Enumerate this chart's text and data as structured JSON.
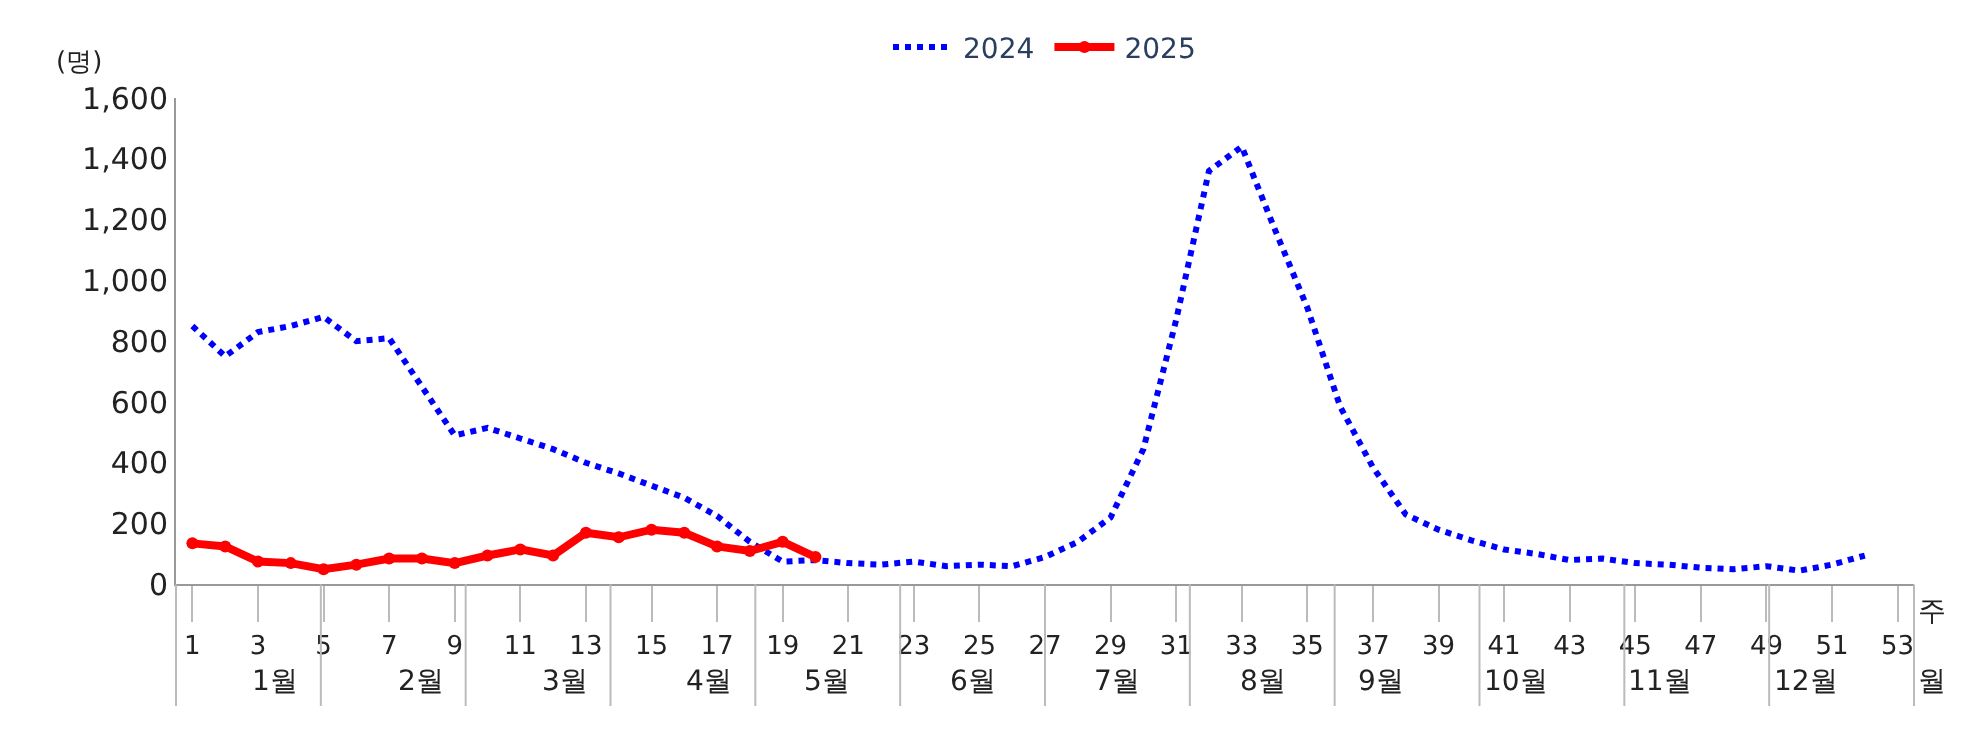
{
  "chart_data": {
    "type": "line",
    "ylabel": "(명)",
    "xlabel": "주",
    "x2label": "월",
    "x": [
      1,
      2,
      3,
      4,
      5,
      6,
      7,
      8,
      9,
      10,
      11,
      12,
      13,
      14,
      15,
      16,
      17,
      18,
      19,
      20,
      21,
      22,
      23,
      24,
      25,
      26,
      27,
      28,
      29,
      30,
      31,
      32,
      33,
      34,
      35,
      36,
      37,
      38,
      39,
      40,
      41,
      42,
      43,
      44,
      45,
      46,
      47,
      48,
      49,
      50,
      51,
      52
    ],
    "series": [
      {
        "name": "2024",
        "color": "#0000ff",
        "line_style": "dotted",
        "marker": "none",
        "values": [
          850,
          750,
          830,
          850,
          880,
          800,
          810,
          650,
          490,
          515,
          480,
          445,
          400,
          365,
          325,
          285,
          225,
          140,
          75,
          80,
          70,
          65,
          75,
          60,
          65,
          60,
          90,
          140,
          220,
          445,
          870,
          1360,
          1440,
          1170,
          910,
          585,
          385,
          230,
          180,
          145,
          115,
          100,
          80,
          85,
          70,
          65,
          55,
          50,
          60,
          45,
          65,
          95
        ]
      },
      {
        "name": "2025",
        "color": "#ff0000",
        "line_style": "solid",
        "marker": "circle",
        "values": [
          135,
          125,
          75,
          70,
          50,
          65,
          85,
          85,
          70,
          95,
          115,
          95,
          170,
          155,
          180,
          170,
          125,
          110,
          140,
          90,
          null,
          null,
          null,
          null,
          null,
          null,
          null,
          null,
          null,
          null,
          null,
          null,
          null,
          null,
          null,
          null,
          null,
          null,
          null,
          null,
          null,
          null,
          null,
          null,
          null,
          null,
          null,
          null,
          null,
          null,
          null,
          null
        ]
      }
    ],
    "xlim": [
      0.5,
      53.5
    ],
    "xticks": [
      1,
      3,
      5,
      7,
      9,
      11,
      13,
      15,
      17,
      19,
      21,
      23,
      25,
      27,
      29,
      31,
      33,
      35,
      37,
      39,
      41,
      43,
      45,
      47,
      49,
      51,
      53
    ],
    "annotations": [
      "1월",
      "2월",
      "3월",
      "4월",
      "5월",
      "6월",
      "7월",
      "8월",
      "9월",
      "10월",
      "11월",
      "12월"
    ],
    "ylim": [
      0,
      1600
    ],
    "yticks": [
      0,
      200,
      400,
      600,
      800,
      {
        "value": 1000,
        "label": "1,000"
      },
      {
        "value": 1200,
        "label": "1,200"
      },
      {
        "value": 1400,
        "label": "1,400"
      },
      {
        "value": 1600,
        "label": "1,600"
      }
    ],
    "legend": "top"
  }
}
